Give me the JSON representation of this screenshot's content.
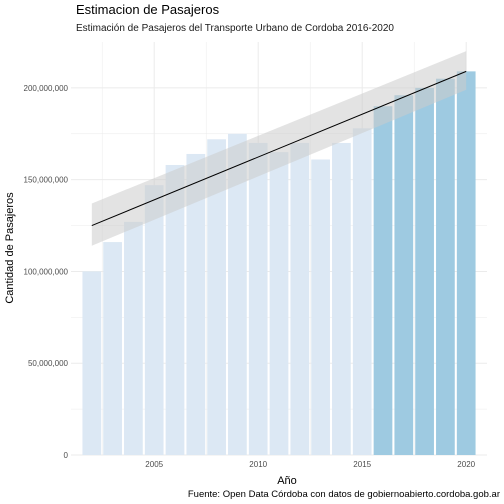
{
  "chart_data": {
    "type": "bar",
    "title": "Estimacion de Pasajeros",
    "subtitle": "Estimación de Pasajeros del Transporte Urbano de Cordoba 2016-2020",
    "xlabel": "Año",
    "ylabel": "Cantidad de Pasajeros",
    "caption": "Fuente: Open Data Córdoba con datos de gobiernoabierto.cordoba.gob.ar",
    "xlim": [
      2001,
      2021
    ],
    "ylim": [
      0,
      225000000
    ],
    "x_ticks": [
      2005,
      2010,
      2015,
      2020
    ],
    "y_ticks": [
      0,
      50000000,
      100000000,
      150000000,
      200000000
    ],
    "y_tick_labels": [
      "0",
      "50,000,000",
      "100,000,000",
      "150,000,000",
      "200,000,000"
    ],
    "grid": true,
    "x": [
      2002,
      2003,
      2004,
      2005,
      2006,
      2007,
      2008,
      2009,
      2010,
      2011,
      2012,
      2013,
      2014,
      2015,
      2016,
      2017,
      2018,
      2019,
      2020
    ],
    "values": [
      100000000,
      116000000,
      127000000,
      147000000,
      158000000,
      164000000,
      172000000,
      175000000,
      170000000,
      165000000,
      170000000,
      161000000,
      170000000,
      178000000,
      190000000,
      196000000,
      200000000,
      205000000,
      209000000
    ],
    "estimated_from": 2016,
    "colors": {
      "observed_bar": "#dce8f4",
      "estimated_bar": "#9ecae1",
      "trend_line": "#000000",
      "confidence_band": "#cccccc",
      "grid": "#ebebeb"
    },
    "trend": {
      "x": [
        2002,
        2020
      ],
      "y": [
        125000000,
        209000000
      ],
      "ci_lower": [
        114000000,
        199000000
      ],
      "ci_upper": [
        137000000,
        220000000
      ]
    }
  }
}
